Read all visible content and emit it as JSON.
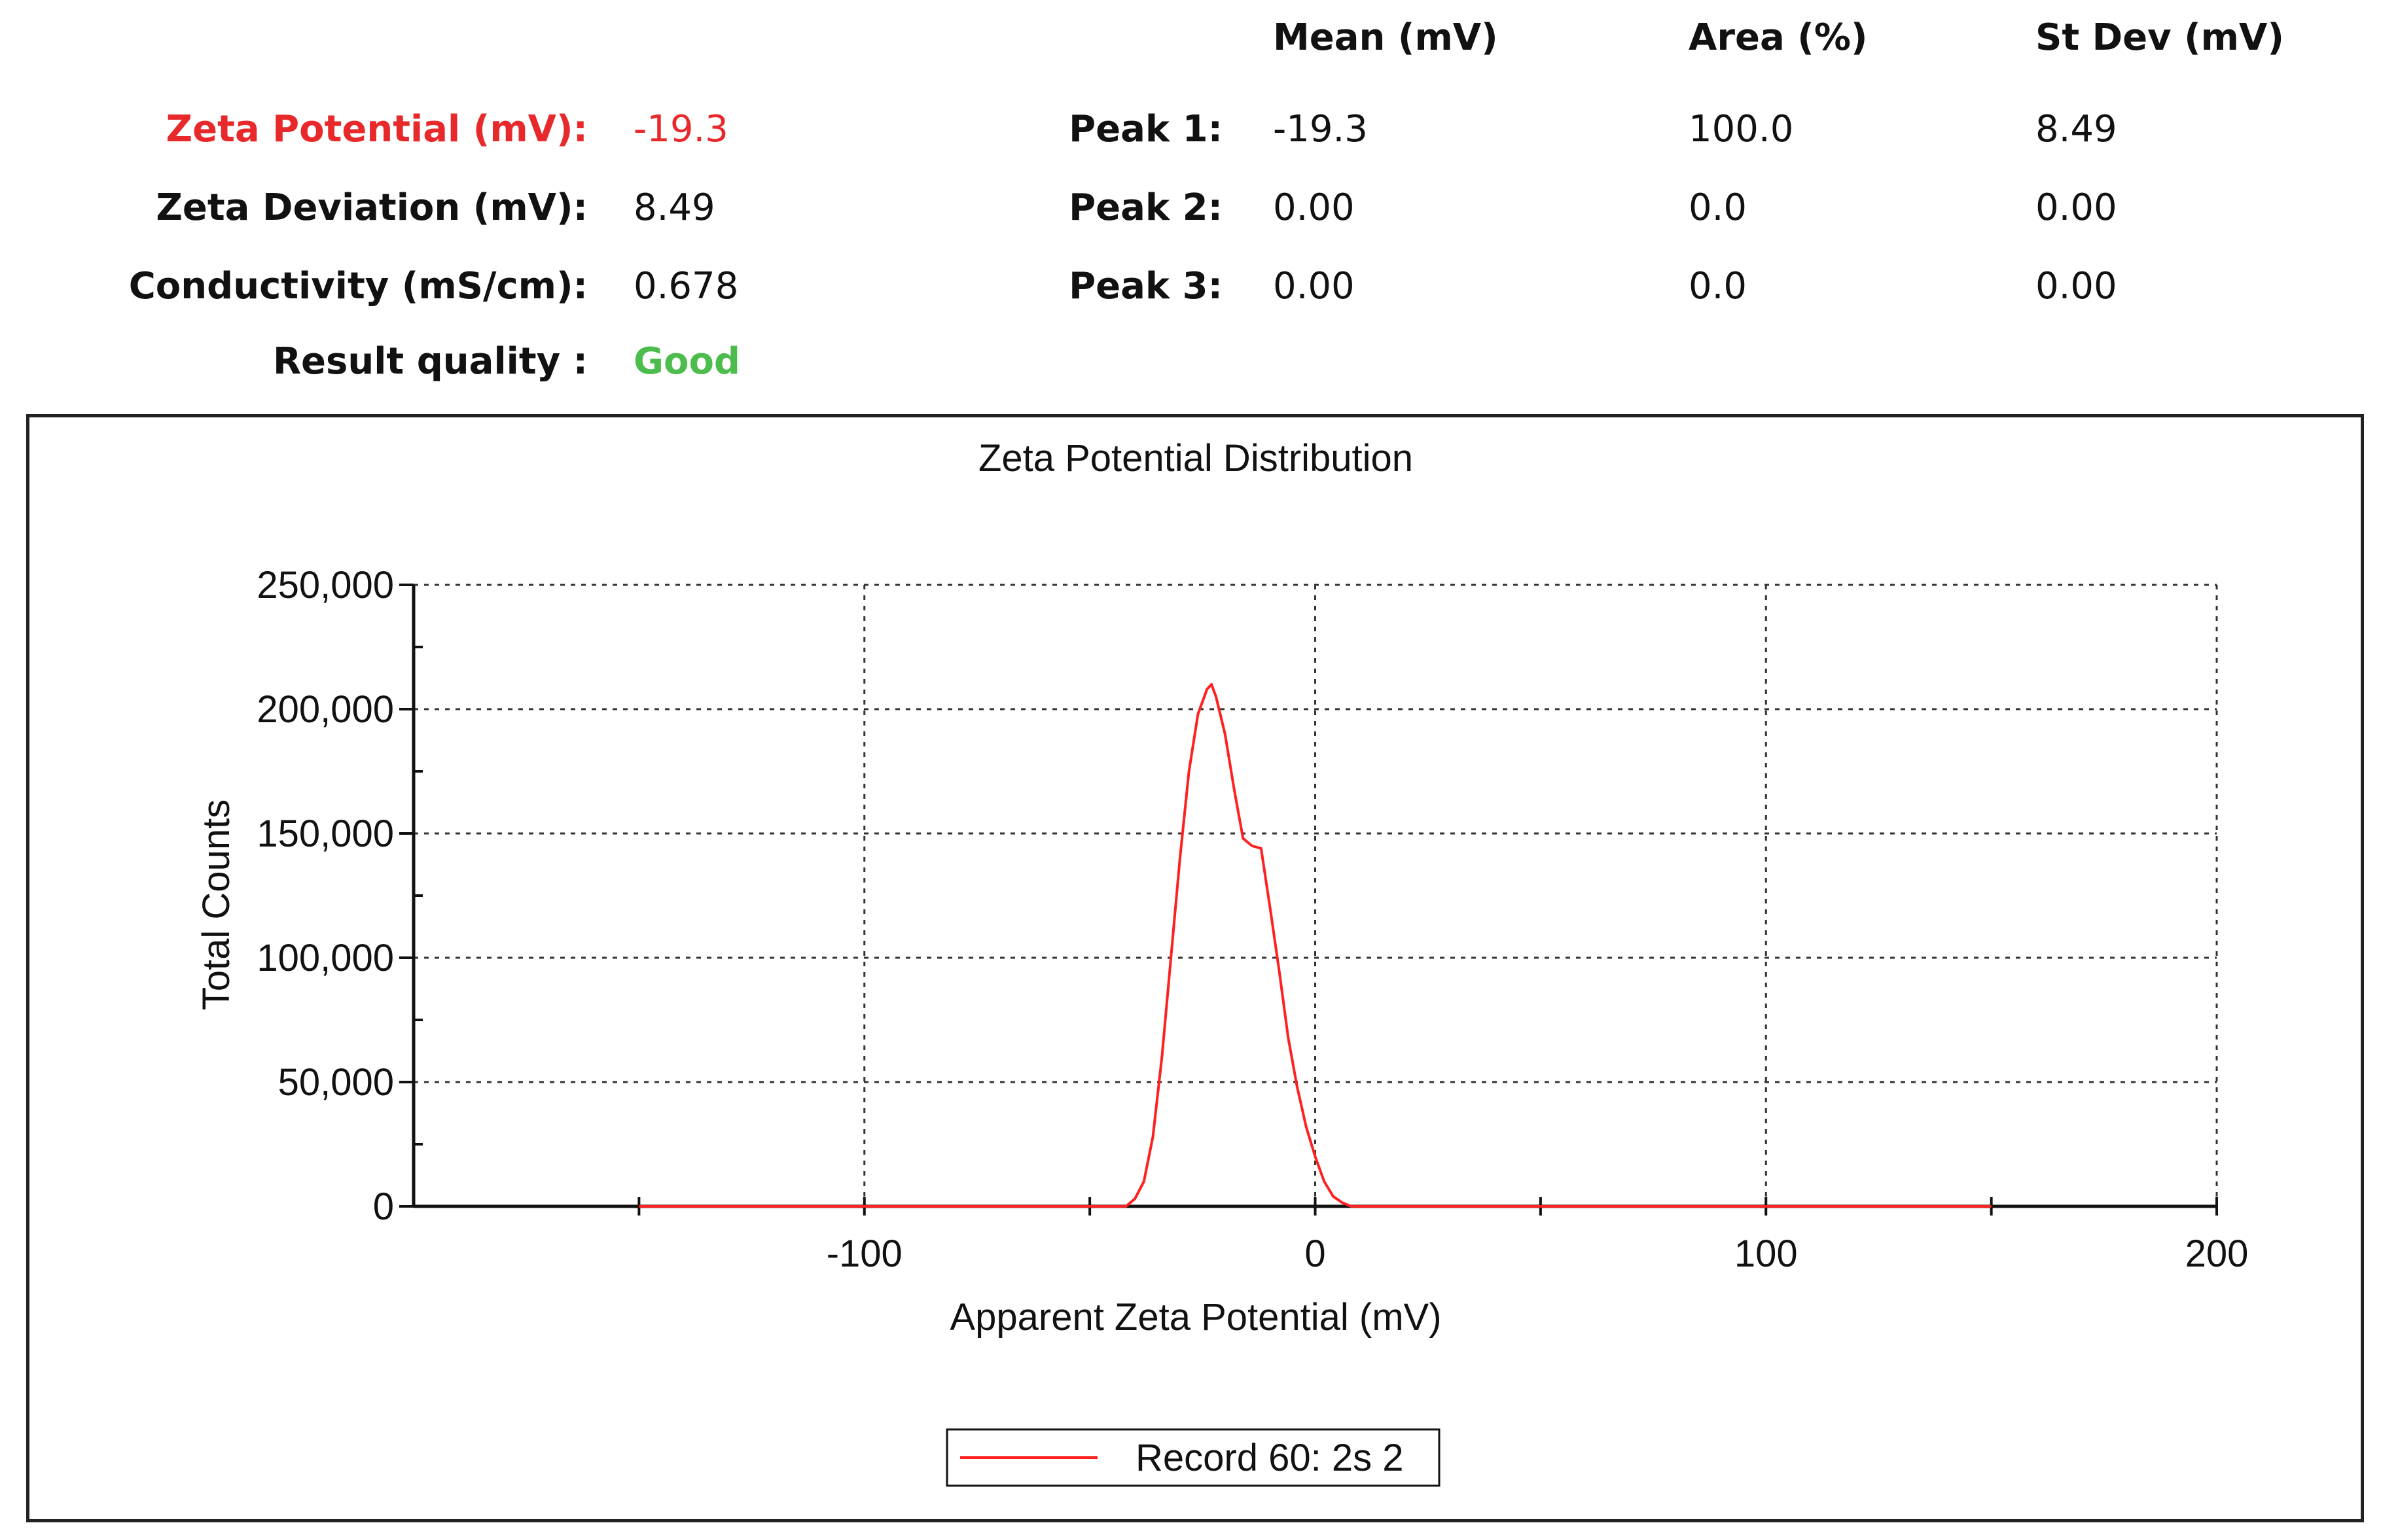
{
  "summary": {
    "zeta_potential": {
      "label": "Zeta Potential (mV):",
      "value": "-19.3"
    },
    "zeta_deviation": {
      "label": "Zeta Deviation (mV):",
      "value": "8.49"
    },
    "conductivity": {
      "label": "Conductivity (mS/cm):",
      "value": "0.678"
    },
    "result_quality": {
      "label": "Result quality :",
      "value": "Good"
    }
  },
  "peaks": {
    "headers": {
      "mean": "Mean (mV)",
      "area": "Area (%)",
      "stdev": "St Dev (mV)"
    },
    "rows": [
      {
        "label": "Peak 1:",
        "mean": "-19.3",
        "area": "100.0",
        "stdev": "8.49"
      },
      {
        "label": "Peak 2:",
        "mean": "0.00",
        "area": "0.0",
        "stdev": "0.00"
      },
      {
        "label": "Peak 3:",
        "mean": "0.00",
        "area": "0.0",
        "stdev": "0.00"
      }
    ]
  },
  "colors": {
    "accent_red": "#e8292b",
    "good_green": "#4cbd4c",
    "series": "#ff2020"
  },
  "chart_data": {
    "type": "line",
    "title": "Zeta Potential Distribution",
    "xlabel": "Apparent Zeta Potential (mV)",
    "ylabel": "Total Counts",
    "xlim": [
      -200,
      200
    ],
    "ylim": [
      0,
      250000
    ],
    "x_ticks": [
      {
        "value": -100,
        "label": "-100"
      },
      {
        "value": 0,
        "label": "0"
      },
      {
        "value": 100,
        "label": "100"
      },
      {
        "value": 200,
        "label": "200"
      }
    ],
    "y_ticks": [
      {
        "value": 0,
        "label": "0"
      },
      {
        "value": 50000,
        "label": "50,000"
      },
      {
        "value": 100000,
        "label": "100,000"
      },
      {
        "value": 150000,
        "label": "150,000"
      },
      {
        "value": 200000,
        "label": "200,000"
      },
      {
        "value": 250000,
        "label": "250,000"
      }
    ],
    "grid": true,
    "legend_position": "bottom-center",
    "series": [
      {
        "name": "Record 60: 2s 2",
        "color": "#ff2020",
        "x": [
          -150,
          -100,
          -50,
          -42,
          -40,
          -38,
          -36,
          -34,
          -32,
          -30,
          -28,
          -26,
          -24,
          -23,
          -22,
          -20,
          -18,
          -16,
          -14,
          -12,
          -10,
          -8,
          -6,
          -4,
          -2,
          0,
          2,
          4,
          6,
          8,
          10,
          50,
          100,
          150
        ],
        "y": [
          0,
          0,
          0,
          0,
          3000,
          10000,
          28000,
          60000,
          100000,
          140000,
          175000,
          198000,
          208000,
          210000,
          205000,
          190000,
          168000,
          148000,
          145000,
          144000,
          120000,
          95000,
          68000,
          48000,
          32000,
          20000,
          10000,
          4000,
          1500,
          0,
          0,
          0,
          0,
          0
        ]
      }
    ]
  }
}
